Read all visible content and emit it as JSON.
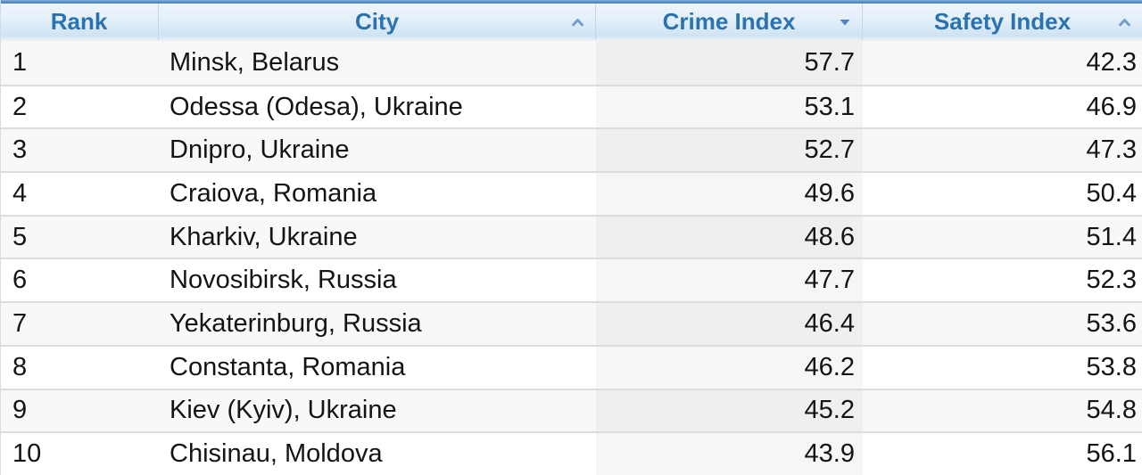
{
  "table": {
    "columns": [
      {
        "label": "Rank",
        "sort_icon": "none",
        "sort_state": "unsorted"
      },
      {
        "label": "City",
        "sort_icon": "chevron-up",
        "sort_state": "sortable"
      },
      {
        "label": "Crime Index",
        "sort_icon": "triangle-down",
        "sort_state": "sorted-descending"
      },
      {
        "label": "Safety Index",
        "sort_icon": "chevron-up",
        "sort_state": "sortable"
      }
    ],
    "rows": [
      {
        "rank": "1",
        "city": "Minsk, Belarus",
        "crime_index": "57.7",
        "safety_index": "42.3"
      },
      {
        "rank": "2",
        "city": "Odessa (Odesa), Ukraine",
        "crime_index": "53.1",
        "safety_index": "46.9"
      },
      {
        "rank": "3",
        "city": "Dnipro, Ukraine",
        "crime_index": "52.7",
        "safety_index": "47.3"
      },
      {
        "rank": "4",
        "city": "Craiova, Romania",
        "crime_index": "49.6",
        "safety_index": "50.4"
      },
      {
        "rank": "5",
        "city": "Kharkiv, Ukraine",
        "crime_index": "48.6",
        "safety_index": "51.4"
      },
      {
        "rank": "6",
        "city": "Novosibirsk, Russia",
        "crime_index": "47.7",
        "safety_index": "52.3"
      },
      {
        "rank": "7",
        "city": "Yekaterinburg, Russia",
        "crime_index": "46.4",
        "safety_index": "53.6"
      },
      {
        "rank": "8",
        "city": "Constanta, Romania",
        "crime_index": "46.2",
        "safety_index": "53.8"
      },
      {
        "rank": "9",
        "city": "Kiev (Kyiv), Ukraine",
        "crime_index": "45.2",
        "safety_index": "54.8"
      },
      {
        "rank": "10",
        "city": "Chisinau, Moldova",
        "crime_index": "43.9",
        "safety_index": "56.1"
      }
    ]
  },
  "chart_data": {
    "type": "table",
    "title": "",
    "columns": [
      "Rank",
      "City",
      "Crime Index",
      "Safety Index"
    ],
    "rows": [
      [
        1,
        "Minsk, Belarus",
        57.7,
        42.3
      ],
      [
        2,
        "Odessa (Odesa), Ukraine",
        53.1,
        46.9
      ],
      [
        3,
        "Dnipro, Ukraine",
        52.7,
        47.3
      ],
      [
        4,
        "Craiova, Romania",
        49.6,
        50.4
      ],
      [
        5,
        "Kharkiv, Ukraine",
        48.6,
        51.4
      ],
      [
        6,
        "Novosibirsk, Russia",
        47.7,
        52.3
      ],
      [
        7,
        "Yekaterinburg, Russia",
        46.4,
        53.6
      ],
      [
        8,
        "Constanta, Romania",
        46.2,
        53.8
      ],
      [
        9,
        "Kiev (Kyiv), Ukraine",
        45.2,
        54.8
      ],
      [
        10,
        "Chisinau, Moldova",
        43.9,
        56.1
      ]
    ]
  },
  "colors": {
    "header_text": "#2a73b0",
    "header_top_border": "#4a81bb",
    "sort_chevron": "#6f9ecd",
    "sort_triangle_active": "#4a86bd",
    "row_stripe": "#f8f8f8",
    "sorted_column_tint": "#f0f0f0",
    "row_divider": "#dcdcdc",
    "body_text": "#141414"
  }
}
